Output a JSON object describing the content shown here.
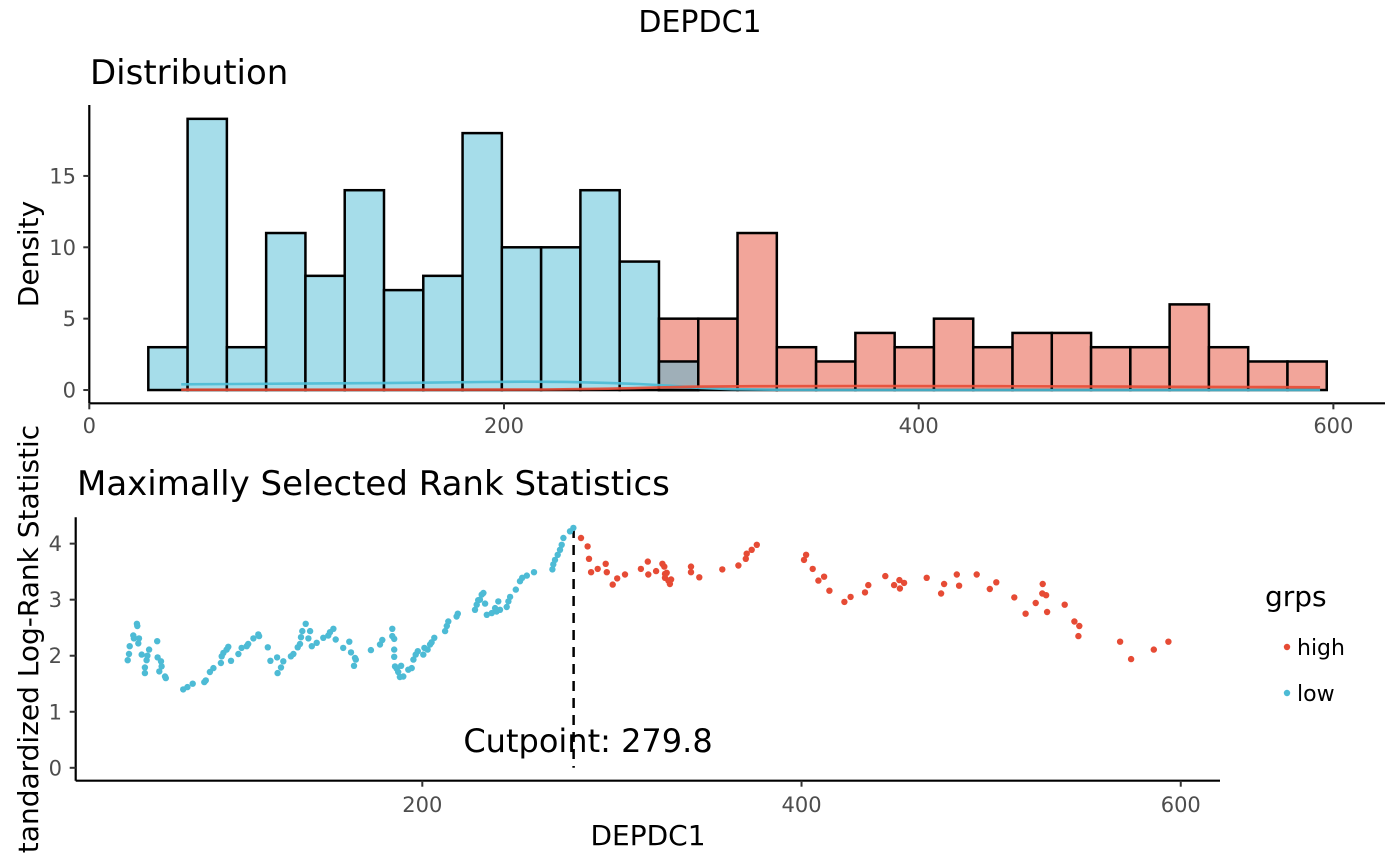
{
  "figure": {
    "title": "DEPDC1"
  },
  "colors": {
    "high": "#E64B35",
    "low": "#4DBBD5",
    "high_fill": "#F2A59A",
    "low_fill": "#A6DDEA",
    "overlap_fill": "#9FAFB8",
    "axis": "#000000",
    "tick_label": "#4D4D4D"
  },
  "chart_data": [
    {
      "type": "bar",
      "subtype": "histogram",
      "title": "Distribution",
      "xlabel": "",
      "ylabel": "Density",
      "xlim": [
        0,
        624.9
      ],
      "ylim": [
        -0.93,
        19.97
      ],
      "grid": false,
      "x_ticks": [
        0,
        200,
        400,
        600
      ],
      "x_tick_labels": [
        "0",
        "200",
        "400",
        "600"
      ],
      "y_ticks": [
        0,
        5,
        10,
        15
      ],
      "y_tick_labels": [
        "0",
        "5",
        "10",
        "15"
      ],
      "bin_start": 28.46,
      "bin_width": 18.945,
      "series": [
        {
          "name": "low",
          "counts": [
            3,
            19,
            3,
            11,
            8,
            14,
            7,
            8,
            18,
            10,
            10,
            14,
            9,
            2,
            0,
            0,
            0,
            0,
            0,
            0,
            0,
            0,
            0,
            0,
            0,
            0,
            0,
            0,
            0,
            0
          ]
        },
        {
          "name": "high",
          "counts": [
            0,
            0,
            0,
            0,
            0,
            0,
            0,
            0,
            0,
            0,
            0,
            0,
            0,
            5,
            5,
            11,
            3,
            2,
            4,
            3,
            5,
            3,
            4,
            4,
            3,
            3,
            6,
            3,
            2,
            2
          ]
        }
      ],
      "density": [
        {
          "name": "low",
          "points": [
            [
              44.3,
              0.4
            ],
            [
              70,
              0.42
            ],
            [
              100,
              0.45
            ],
            [
              130,
              0.48
            ],
            [
              160,
              0.51
            ],
            [
              190,
              0.56
            ],
            [
              210,
              0.58
            ],
            [
              230,
              0.57
            ],
            [
              250,
              0.5
            ],
            [
              265,
              0.42
            ],
            [
              280,
              0.3
            ],
            [
              295,
              0.15
            ],
            [
              310,
              0.06
            ],
            [
              330,
              0.02
            ],
            [
              360,
              0.0
            ],
            [
              593.6,
              0.0
            ]
          ]
        },
        {
          "name": "high",
          "points": [
            [
              44.3,
              0.02
            ],
            [
              150,
              0.02
            ],
            [
              220,
              0.04
            ],
            [
              250,
              0.09
            ],
            [
              270,
              0.16
            ],
            [
              290,
              0.23
            ],
            [
              320,
              0.27
            ],
            [
              370,
              0.28
            ],
            [
              440,
              0.27
            ],
            [
              500,
              0.24
            ],
            [
              560,
              0.21
            ],
            [
              593.6,
              0.19
            ]
          ]
        }
      ]
    },
    {
      "type": "scatter",
      "title": "Maximally Selected Rank Statistics",
      "xlabel": "DEPDC1",
      "ylabel": "tandardized Log-Rank Statistic",
      "xlim": [
        17.2,
        620.7
      ],
      "ylim": [
        -0.23,
        4.47
      ],
      "grid": false,
      "x_ticks": [
        200,
        400,
        600
      ],
      "x_tick_labels": [
        "200",
        "400",
        "600"
      ],
      "y_ticks": [
        0,
        1,
        2,
        3,
        4
      ],
      "y_tick_labels": [
        "0",
        "1",
        "2",
        "3",
        "4"
      ],
      "cutpoint": 279.8,
      "annotation": "Cutpoint: 279.8",
      "legend": {
        "title": "grps",
        "position": "right",
        "items": [
          {
            "label": "high",
            "color": "#E64B35"
          },
          {
            "label": "low",
            "color": "#4DBBD5"
          }
        ]
      },
      "series": [
        {
          "name": "low",
          "points": [
            [
              44.6,
              1.92
            ],
            [
              45.3,
              2.03
            ],
            [
              45.7,
              2.17
            ],
            [
              47.6,
              2.36
            ],
            [
              47.9,
              2.31
            ],
            [
              49.5,
              2.57
            ],
            [
              49.7,
              2.53
            ],
            [
              50.2,
              2.22
            ],
            [
              50.6,
              2.31
            ],
            [
              52.0,
              2.02
            ],
            [
              53.7,
              1.79
            ],
            [
              53.7,
              1.69
            ],
            [
              54.6,
              1.92
            ],
            [
              55.0,
              2.0
            ],
            [
              55.9,
              2.11
            ],
            [
              60.2,
              2.26
            ],
            [
              60.4,
              1.97
            ],
            [
              61.3,
              1.72
            ],
            [
              62.2,
              1.9
            ],
            [
              62.5,
              1.81
            ],
            [
              64.3,
              1.63
            ],
            [
              64.7,
              1.6
            ],
            [
              73.9,
              1.4
            ],
            [
              76.1,
              1.44
            ],
            [
              78.9,
              1.5
            ],
            [
              85.0,
              1.53
            ],
            [
              85.8,
              1.56
            ],
            [
              88.0,
              1.71
            ],
            [
              89.8,
              1.78
            ],
            [
              93.8,
              1.87
            ],
            [
              94.2,
              1.99
            ],
            [
              95.1,
              2.05
            ],
            [
              96.8,
              2.11
            ],
            [
              97.7,
              2.16
            ],
            [
              99.1,
              1.91
            ],
            [
              103.0,
              2.03
            ],
            [
              104.7,
              2.14
            ],
            [
              107.4,
              2.17
            ],
            [
              108.2,
              2.21
            ],
            [
              110.9,
              2.31
            ],
            [
              113.5,
              2.38
            ],
            [
              113.9,
              2.35
            ],
            [
              118.5,
              2.15
            ],
            [
              119.9,
              1.91
            ],
            [
              123.4,
              1.97
            ],
            [
              123.7,
              1.69
            ],
            [
              125.5,
              1.79
            ],
            [
              126.7,
              1.9
            ],
            [
              130.7,
              1.99
            ],
            [
              132.0,
              2.03
            ],
            [
              134.3,
              2.15
            ],
            [
              135.5,
              2.21
            ],
            [
              136.0,
              2.33
            ],
            [
              136.7,
              2.44
            ],
            [
              138.5,
              2.57
            ],
            [
              139.9,
              2.31
            ],
            [
              140.8,
              2.44
            ],
            [
              141.7,
              2.17
            ],
            [
              144.3,
              2.23
            ],
            [
              147.8,
              2.32
            ],
            [
              150.4,
              2.36
            ],
            [
              151.3,
              2.42
            ],
            [
              153.1,
              2.48
            ],
            [
              154.3,
              2.29
            ],
            [
              158.3,
              2.14
            ],
            [
              161.5,
              2.25
            ],
            [
              162.4,
              2.06
            ],
            [
              164.0,
              1.82
            ],
            [
              164.5,
              1.96
            ],
            [
              164.9,
              1.93
            ],
            [
              172.9,
              2.1
            ],
            [
              177.7,
              2.2
            ],
            [
              178.9,
              2.28
            ],
            [
              184.2,
              2.48
            ],
            [
              184.2,
              2.35
            ],
            [
              185.2,
              2.3
            ],
            [
              185.2,
              2.11
            ],
            [
              185.2,
              1.98
            ],
            [
              185.6,
              1.81
            ],
            [
              186.5,
              1.77
            ],
            [
              187.3,
              1.71
            ],
            [
              188.2,
              1.62
            ],
            [
              188.8,
              1.82
            ],
            [
              190.0,
              1.63
            ],
            [
              192.6,
              1.75
            ],
            [
              194.4,
              1.78
            ],
            [
              195.3,
              1.93
            ],
            [
              196.5,
              2.02
            ],
            [
              197.6,
              2.08
            ],
            [
              200.5,
              2.02
            ],
            [
              201.1,
              2.14
            ],
            [
              202.8,
              2.11
            ],
            [
              204.1,
              2.2
            ],
            [
              204.9,
              2.24
            ],
            [
              206.3,
              2.32
            ],
            [
              212.0,
              2.44
            ],
            [
              212.9,
              2.53
            ],
            [
              213.7,
              2.61
            ],
            [
              218.1,
              2.7
            ],
            [
              218.7,
              2.75
            ],
            [
              227.8,
              2.82
            ],
            [
              228.7,
              2.91
            ],
            [
              229.5,
              2.99
            ],
            [
              230.4,
              3.0
            ],
            [
              231.3,
              3.09
            ],
            [
              232.2,
              3.12
            ],
            [
              233.1,
              2.93
            ],
            [
              234.0,
              2.73
            ],
            [
              236.6,
              2.76
            ],
            [
              238.4,
              2.85
            ],
            [
              239.2,
              2.79
            ],
            [
              240.1,
              2.97
            ],
            [
              241.0,
              2.82
            ],
            [
              244.5,
              2.87
            ],
            [
              245.4,
              2.97
            ],
            [
              246.3,
              3.05
            ],
            [
              249.3,
              3.18
            ],
            [
              251.5,
              3.33
            ],
            [
              252.7,
              3.39
            ],
            [
              255.1,
              3.43
            ],
            [
              258.9,
              3.49
            ],
            [
              268.6,
              3.54
            ],
            [
              269.1,
              3.63
            ],
            [
              270.0,
              3.71
            ],
            [
              271.4,
              3.8
            ],
            [
              272.6,
              3.89
            ],
            [
              273.5,
              3.98
            ],
            [
              274.4,
              4.1
            ],
            [
              277.9,
              4.22
            ],
            [
              279.7,
              4.28
            ]
          ]
        },
        {
          "name": "high",
          "points": [
            [
              283.7,
              4.1
            ],
            [
              287.2,
              3.95
            ],
            [
              287.9,
              3.73
            ],
            [
              289.0,
              3.49
            ],
            [
              292.5,
              3.55
            ],
            [
              296.7,
              3.64
            ],
            [
              297.3,
              3.49
            ],
            [
              300.4,
              3.27
            ],
            [
              302.8,
              3.38
            ],
            [
              306.9,
              3.45
            ],
            [
              315.3,
              3.55
            ],
            [
              318.9,
              3.68
            ],
            [
              319.2,
              3.45
            ],
            [
              323.3,
              3.51
            ],
            [
              326.6,
              3.64
            ],
            [
              327.6,
              3.59
            ],
            [
              328.0,
              3.46
            ],
            [
              328.9,
              3.48
            ],
            [
              328.0,
              3.39
            ],
            [
              329.8,
              3.34
            ],
            [
              330.6,
              3.28
            ],
            [
              331.2,
              3.36
            ],
            [
              341.7,
              3.59
            ],
            [
              341.7,
              3.49
            ],
            [
              346.1,
              3.4
            ],
            [
              358.2,
              3.54
            ],
            [
              366.7,
              3.61
            ],
            [
              370.6,
              3.73
            ],
            [
              371.1,
              3.82
            ],
            [
              373.7,
              3.89
            ],
            [
              376.4,
              3.98
            ],
            [
              401.3,
              3.71
            ],
            [
              402.4,
              3.8
            ],
            [
              405.9,
              3.55
            ],
            [
              408.9,
              3.34
            ],
            [
              411.9,
              3.41
            ],
            [
              414.7,
              3.16
            ],
            [
              422.6,
              2.96
            ],
            [
              425.9,
              3.05
            ],
            [
              433.5,
              3.13
            ],
            [
              435.2,
              3.26
            ],
            [
              444.2,
              3.42
            ],
            [
              448.8,
              3.26
            ],
            [
              451.6,
              3.35
            ],
            [
              451.9,
              3.2
            ],
            [
              454.1,
              3.3
            ],
            [
              466.0,
              3.39
            ],
            [
              473.6,
              3.11
            ],
            [
              475.2,
              3.28
            ],
            [
              481.9,
              3.45
            ],
            [
              483.1,
              3.25
            ],
            [
              492.4,
              3.45
            ],
            [
              499.3,
              3.19
            ],
            [
              502.7,
              3.31
            ],
            [
              512.2,
              3.04
            ],
            [
              518.2,
              2.75
            ],
            [
              523.5,
              2.94
            ],
            [
              527.2,
              3.28
            ],
            [
              527.0,
              3.11
            ],
            [
              529.0,
              3.08
            ],
            [
              529.5,
              2.78
            ],
            [
              538.8,
              2.91
            ],
            [
              543.9,
              2.61
            ],
            [
              546.5,
              2.53
            ],
            [
              546.0,
              2.35
            ],
            [
              568.0,
              2.25
            ],
            [
              573.8,
              1.94
            ],
            [
              585.8,
              2.11
            ],
            [
              593.5,
              2.25
            ]
          ]
        }
      ]
    }
  ]
}
